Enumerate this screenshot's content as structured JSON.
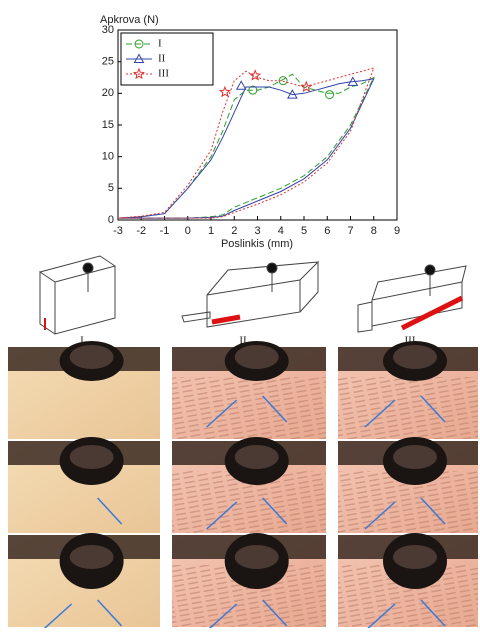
{
  "chart_data": {
    "type": "line",
    "y_label": "Apkrova (N)",
    "x_label": "Poslinkis  (mm)",
    "xlim": [
      -3,
      9
    ],
    "xticks": [
      -3,
      -2,
      -1,
      0,
      1,
      2,
      3,
      4,
      5,
      6,
      7,
      8,
      9
    ],
    "ylim": [
      0,
      30
    ],
    "yticks": [
      0,
      5,
      10,
      15,
      20,
      25,
      30
    ],
    "legend": "upper left",
    "series": [
      {
        "name": "I",
        "color": "#2e9e2e",
        "marker": "circle",
        "dash": "6,3",
        "x": [
          -3,
          -2,
          -1,
          0,
          1,
          1.5,
          2,
          2.5,
          3,
          3.5,
          4,
          4.5,
          5,
          5.5,
          6,
          6.5,
          7,
          7.5,
          8,
          7,
          6,
          5,
          4,
          3,
          2,
          1.5,
          1,
          0,
          -3
        ],
        "values": [
          0.3,
          0.5,
          1,
          5,
          10,
          14,
          19,
          20.5,
          20.5,
          21,
          22,
          23,
          21,
          20.5,
          20,
          20,
          21,
          21.5,
          22.5,
          15,
          10,
          7,
          5,
          3.5,
          2,
          0.8,
          0.5,
          0.3,
          0.3
        ],
        "marker_x": [
          2.8,
          4.1,
          6.1
        ],
        "marker_values": [
          20.5,
          22,
          19.8
        ]
      },
      {
        "name": "II",
        "color": "#3344aa",
        "marker": "triangle",
        "dash": "",
        "x": [
          -3,
          -2,
          -1,
          0,
          1,
          1.5,
          2,
          2.5,
          3,
          3.5,
          4,
          4.5,
          5,
          5.5,
          6,
          6.5,
          7,
          7.5,
          8,
          7,
          6,
          5,
          4,
          3,
          2,
          1.5,
          1,
          0,
          -3
        ],
        "values": [
          0.3,
          0.5,
          1,
          5,
          9.5,
          13,
          17,
          21,
          21,
          21,
          20.5,
          19.8,
          20,
          20.5,
          21,
          21.5,
          21.8,
          22,
          22.3,
          14.5,
          9.5,
          6.5,
          4.5,
          3,
          1.5,
          0.6,
          0.4,
          0.3,
          0.3
        ],
        "marker_x": [
          2.3,
          4.5,
          7.1
        ],
        "marker_values": [
          21.2,
          19.8,
          21.8
        ]
      },
      {
        "name": "III",
        "color": "#e03030",
        "marker": "star",
        "dash": "2,2",
        "x": [
          -3,
          -2,
          -1,
          0,
          1,
          1.5,
          2,
          2.5,
          3,
          3.5,
          4,
          4.5,
          5,
          5.5,
          6,
          6.5,
          7,
          7.5,
          8,
          7,
          6,
          5,
          4,
          3,
          2,
          1.5,
          1,
          0,
          -3
        ],
        "values": [
          0.3,
          0.6,
          1.2,
          5.5,
          11,
          17,
          22,
          23.5,
          22.5,
          22,
          22,
          21.5,
          21,
          21.5,
          22,
          22.5,
          23,
          23.5,
          24,
          14,
          9,
          6,
          4,
          2.5,
          1.2,
          0.5,
          0.3,
          0.3,
          0.3
        ],
        "marker_x": [
          1.6,
          2.9,
          5.1
        ],
        "marker_values": [
          20.2,
          22.8,
          21
        ]
      }
    ]
  },
  "panels": {
    "labels": [
      "I",
      "II",
      "III"
    ]
  }
}
